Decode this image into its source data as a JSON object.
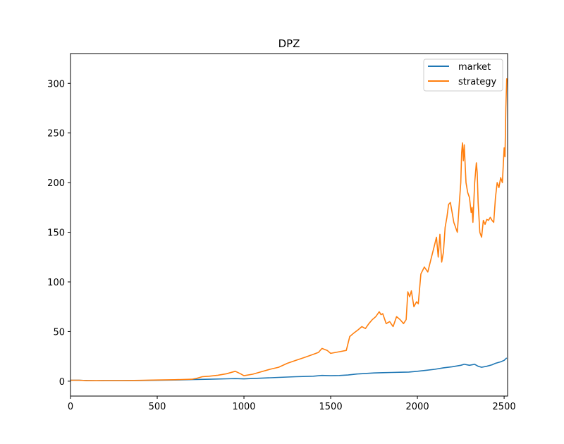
{
  "chart_data": {
    "type": "line",
    "title": "DPZ",
    "xlabel": "",
    "ylabel": "",
    "xlim": [
      0,
      2520
    ],
    "ylim": [
      -15,
      330
    ],
    "x_ticks": [
      0,
      500,
      1000,
      1500,
      2000,
      2500
    ],
    "y_ticks": [
      0,
      50,
      100,
      150,
      200,
      250,
      300
    ],
    "grid": false,
    "legend_position": "top-right",
    "series": [
      {
        "name": "market",
        "color": "#1f77b4",
        "x": [
          0,
          50,
          100,
          150,
          200,
          300,
          400,
          500,
          600,
          700,
          800,
          900,
          950,
          1000,
          1100,
          1200,
          1300,
          1400,
          1450,
          1500,
          1550,
          1600,
          1650,
          1700,
          1750,
          1800,
          1850,
          1900,
          1950,
          2000,
          2050,
          2100,
          2150,
          2200,
          2250,
          2270,
          2300,
          2330,
          2350,
          2370,
          2400,
          2430,
          2450,
          2480,
          2500,
          2515
        ],
        "values": [
          1.0,
          1.0,
          0.6,
          0.5,
          0.6,
          0.6,
          0.7,
          0.9,
          1.2,
          1.6,
          2.0,
          2.4,
          2.6,
          2.3,
          3.0,
          3.8,
          4.5,
          5.0,
          5.8,
          5.5,
          5.7,
          6.2,
          7.2,
          7.8,
          8.3,
          8.6,
          8.8,
          9.0,
          9.2,
          10.0,
          11.0,
          12.0,
          13.5,
          14.5,
          16.0,
          17.0,
          16.0,
          17.0,
          15.0,
          14.0,
          15.0,
          16.5,
          18.0,
          19.5,
          21.0,
          23.5
        ]
      },
      {
        "name": "strategy",
        "color": "#ff7f0e",
        "x": [
          0,
          50,
          100,
          150,
          200,
          300,
          400,
          500,
          600,
          700,
          730,
          760,
          800,
          850,
          900,
          950,
          980,
          1000,
          1050,
          1100,
          1150,
          1200,
          1250,
          1300,
          1350,
          1400,
          1430,
          1450,
          1480,
          1500,
          1530,
          1560,
          1590,
          1610,
          1630,
          1660,
          1680,
          1700,
          1720,
          1740,
          1760,
          1780,
          1790,
          1800,
          1820,
          1840,
          1860,
          1880,
          1900,
          1920,
          1935,
          1945,
          1955,
          1965,
          1980,
          1995,
          2005,
          2020,
          2040,
          2060,
          2080,
          2100,
          2110,
          2120,
          2130,
          2140,
          2150,
          2160,
          2170,
          2180,
          2190,
          2200,
          2210,
          2220,
          2230,
          2240,
          2250,
          2255,
          2260,
          2265,
          2270,
          2280,
          2290,
          2300,
          2310,
          2315,
          2320,
          2330,
          2340,
          2345,
          2350,
          2360,
          2370,
          2380,
          2390,
          2400,
          2410,
          2420,
          2430,
          2440,
          2450,
          2460,
          2470,
          2480,
          2490,
          2500,
          2505,
          2510,
          2515
        ],
        "values": [
          1.0,
          1.0,
          0.5,
          0.5,
          0.6,
          0.6,
          0.8,
          1.2,
          1.5,
          2.0,
          3.0,
          4.5,
          5.0,
          6.0,
          7.5,
          10.0,
          7.5,
          5.5,
          7.0,
          9.5,
          12.0,
          14.0,
          18.0,
          21.0,
          24.0,
          27.0,
          29.0,
          33.0,
          31.0,
          28.0,
          29.0,
          30.0,
          31.0,
          45.0,
          48.0,
          52.0,
          55.0,
          53.0,
          58.0,
          62.0,
          65.0,
          70.0,
          67.0,
          68.0,
          58.0,
          60.0,
          55.0,
          65.0,
          62.0,
          58.0,
          62.0,
          90.0,
          85.0,
          91.0,
          75.0,
          80.0,
          78.0,
          108.0,
          115.0,
          110.0,
          124.0,
          138.0,
          145.0,
          125.0,
          148.0,
          120.0,
          130.0,
          155.0,
          165.0,
          178.0,
          180.0,
          170.0,
          160.0,
          155.0,
          150.0,
          175.0,
          200.0,
          230.0,
          240.0,
          222.0,
          238.0,
          200.0,
          190.0,
          185.0,
          170.0,
          175.0,
          160.0,
          200.0,
          220.0,
          210.0,
          180.0,
          150.0,
          145.0,
          162.0,
          158.0,
          163.0,
          162.0,
          165.0,
          162.0,
          160.0,
          185.0,
          200.0,
          195.0,
          205.0,
          200.0,
          235.0,
          226.0,
          275.0,
          305.0
        ]
      }
    ]
  }
}
